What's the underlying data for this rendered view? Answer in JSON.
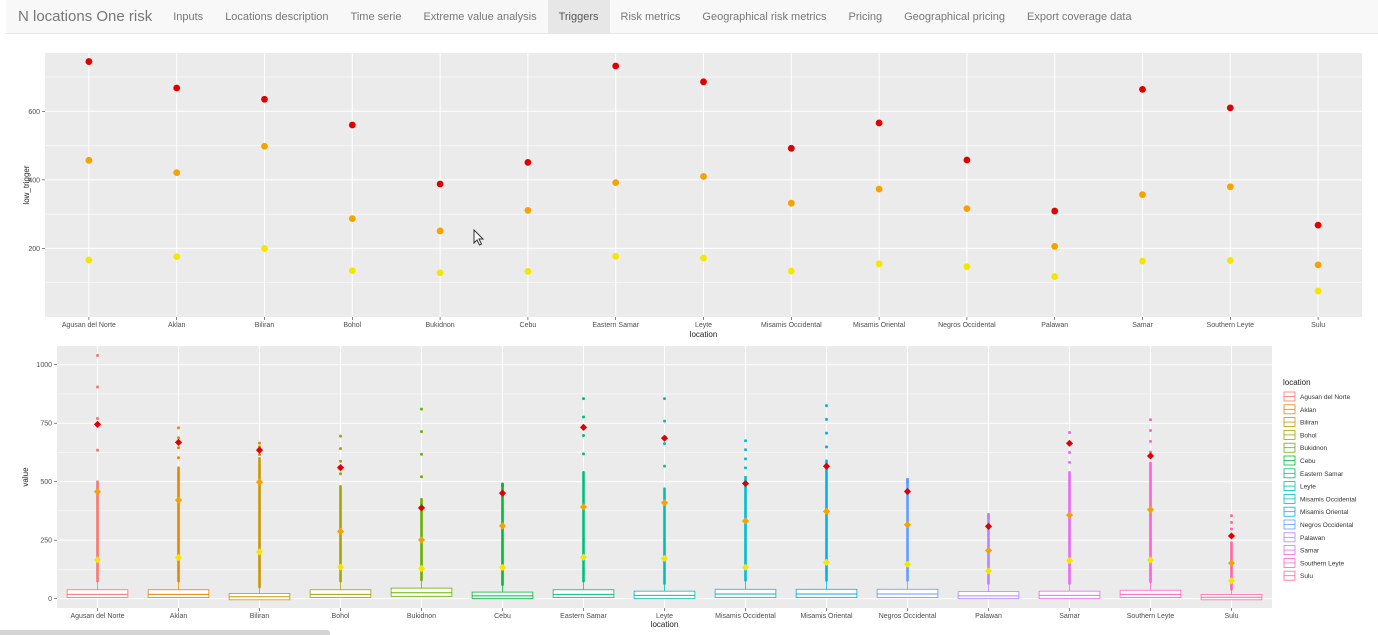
{
  "app": {
    "title": "N locations One risk"
  },
  "nav": {
    "tabs": [
      {
        "label": "Inputs"
      },
      {
        "label": "Locations description"
      },
      {
        "label": "Time serie"
      },
      {
        "label": "Extreme value analysis"
      },
      {
        "label": "Triggers",
        "active": true
      },
      {
        "label": "Risk metrics"
      },
      {
        "label": "Geographical risk metrics"
      },
      {
        "label": "Pricing"
      },
      {
        "label": "Geographical pricing"
      },
      {
        "label": "Export coverage data"
      }
    ]
  },
  "colors": {
    "panel_bg": "#ebebeb",
    "grid": "#ffffff",
    "high_trigger": "#e00000",
    "mid_trigger": "#f5a300",
    "low_trigger": "#f5e600"
  },
  "chart_data": [
    {
      "type": "scatter",
      "xlabel": "location",
      "ylabel": "low_trigger",
      "ylim": [
        0,
        770
      ],
      "yticks": [
        200,
        400,
        600
      ],
      "ytick_labels": [
        "200",
        "400",
        "600"
      ],
      "grid": true,
      "categories": [
        "Agusan del Norte",
        "Aklan",
        "Biliran",
        "Bohol",
        "Bukidnon",
        "Cebu",
        "Eastern Samar",
        "Leyte",
        "Misamis Occidental",
        "Misamis Oriental",
        "Negros Occidental",
        "Palawan",
        "Samar",
        "Southern Leyte",
        "Sulu"
      ],
      "series": [
        {
          "values": [
            745,
            668,
            635,
            560,
            388,
            451,
            732,
            686,
            492,
            566,
            458,
            309,
            664,
            610,
            268
          ],
          "color": "#e00000"
        },
        {
          "values": [
            457,
            421,
            498,
            287,
            251,
            311,
            392,
            410,
            332,
            373,
            316,
            206,
            357,
            380,
            152
          ],
          "color": "#f5a300"
        },
        {
          "values": [
            166,
            176,
            200,
            135,
            129,
            133,
            177,
            172,
            134,
            155,
            147,
            118,
            163,
            165,
            76
          ],
          "color": "#f5e600"
        }
      ]
    },
    {
      "type": "box",
      "xlabel": "location",
      "ylabel": "value",
      "ylim": [
        -40,
        1080
      ],
      "yticks": [
        0,
        250,
        500,
        750,
        1000
      ],
      "ytick_labels": [
        "0",
        "250",
        "500",
        "750",
        "1000"
      ],
      "grid": true,
      "legend": {
        "title": "location",
        "position": "right",
        "entries": [
          "Agusan del Norte",
          "Aklan",
          "Biliran",
          "Bohol",
          "Bukidnon",
          "Cebu",
          "Eastern Samar",
          "Leyte",
          "Misamis Occidental",
          "Misamis Oriental",
          "Negros Occidental",
          "Palawan",
          "Samar",
          "Southern Leyte",
          "Sulu"
        ]
      },
      "categories": [
        "Agusan del Norte",
        "Aklan",
        "Biliran",
        "Bohol",
        "Bukidnon",
        "Cebu",
        "Eastern Samar",
        "Leyte",
        "Misamis Occidental",
        "Misamis Oriental",
        "Negros Occidental",
        "Palawan",
        "Samar",
        "Southern Leyte",
        "Sulu"
      ],
      "box_colors": [
        "#f8766d",
        "#e58700",
        "#c99800",
        "#a3a500",
        "#6bb100",
        "#00ba38",
        "#00bf7d",
        "#00c0af",
        "#00bcd8",
        "#00b0f6",
        "#619cff",
        "#b983ff",
        "#e76bf3",
        "#fd61d1",
        "#ff67a4"
      ],
      "boxes": [
        {
          "q1": 5,
          "median": 18,
          "q3": 38,
          "whisker_high": 75,
          "outlier_max": 1040,
          "dense_max": 500
        },
        {
          "q1": 5,
          "median": 18,
          "q3": 38,
          "whisker_high": 75,
          "outlier_max": 730,
          "dense_max": 560
        },
        {
          "q1": -5,
          "median": 8,
          "q3": 22,
          "whisker_high": 50,
          "outlier_max": 665,
          "dense_max": 600
        },
        {
          "q1": 5,
          "median": 18,
          "q3": 38,
          "whisker_high": 75,
          "outlier_max": 695,
          "dense_max": 480
        },
        {
          "q1": 10,
          "median": 25,
          "q3": 45,
          "whisker_high": 80,
          "outlier_max": 810,
          "dense_max": 425
        },
        {
          "q1": 0,
          "median": 12,
          "q3": 28,
          "whisker_high": 60,
          "outlier_max": 490,
          "dense_max": 480
        },
        {
          "q1": 5,
          "median": 18,
          "q3": 38,
          "whisker_high": 75,
          "outlier_max": 855,
          "dense_max": 540
        },
        {
          "q1": 0,
          "median": 14,
          "q3": 32,
          "whisker_high": 65,
          "outlier_max": 855,
          "dense_max": 470
        },
        {
          "q1": 5,
          "median": 20,
          "q3": 40,
          "whisker_high": 78,
          "outlier_max": 675,
          "dense_max": 520
        },
        {
          "q1": 5,
          "median": 20,
          "q3": 40,
          "whisker_high": 78,
          "outlier_max": 825,
          "dense_max": 590
        },
        {
          "q1": 5,
          "median": 20,
          "q3": 40,
          "whisker_high": 78,
          "outlier_max": 510,
          "dense_max": 490
        },
        {
          "q1": 0,
          "median": 12,
          "q3": 30,
          "whisker_high": 65,
          "outlier_max": 360,
          "dense_max": 340
        },
        {
          "q1": 0,
          "median": 14,
          "q3": 32,
          "whisker_high": 65,
          "outlier_max": 710,
          "dense_max": 540
        },
        {
          "q1": 5,
          "median": 18,
          "q3": 36,
          "whisker_high": 72,
          "outlier_max": 765,
          "dense_max": 580
        },
        {
          "q1": -5,
          "median": 6,
          "q3": 18,
          "whisker_high": 40,
          "outlier_max": 355,
          "dense_max": 240
        }
      ],
      "triggers": {
        "high": [
          745,
          668,
          635,
          560,
          388,
          451,
          732,
          686,
          492,
          566,
          458,
          309,
          664,
          610,
          268
        ],
        "mid": [
          457,
          421,
          498,
          287,
          251,
          311,
          392,
          410,
          332,
          373,
          316,
          206,
          357,
          380,
          152
        ],
        "low": [
          166,
          176,
          200,
          135,
          129,
          133,
          177,
          172,
          134,
          155,
          147,
          118,
          163,
          165,
          76
        ]
      }
    }
  ]
}
